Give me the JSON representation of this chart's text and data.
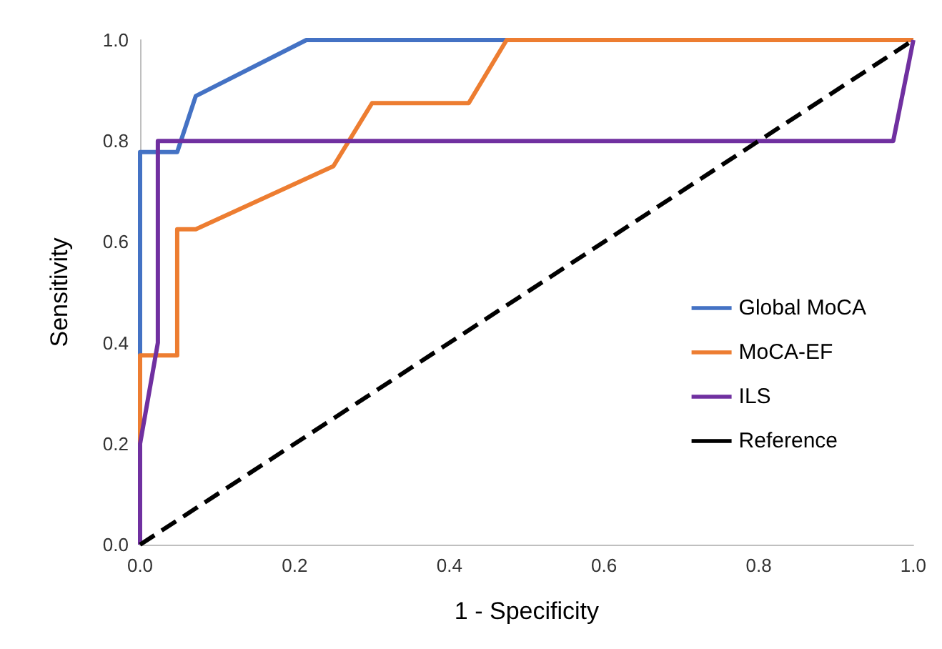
{
  "chart_data": {
    "type": "line",
    "xlabel": "1 - Specificity",
    "ylabel": "Sensitivity",
    "xlim": [
      0,
      1
    ],
    "ylim": [
      0,
      1
    ],
    "xticks": [
      {
        "value": 0,
        "label": "0.0"
      },
      0.2,
      0.4,
      0.6,
      0.8,
      {
        "value": 1,
        "label": "1.0"
      }
    ],
    "yticks": [
      {
        "value": 0,
        "label": "0.0"
      },
      0.2,
      0.4,
      0.6,
      0.8,
      {
        "value": 1,
        "label": "1.0"
      }
    ],
    "grid": false,
    "legend": "right",
    "series": [
      {
        "name": "Global MoCA",
        "color": "#4472c4",
        "x": [
          0,
          0,
          0.048,
          0.072,
          0.215,
          1
        ],
        "values": [
          0,
          0.778,
          0.778,
          0.889,
          1,
          1
        ]
      },
      {
        "name": "MoCA-EF",
        "color": "#ed7d31",
        "x": [
          0,
          0,
          0.048,
          0.048,
          0.072,
          0.25,
          0.3,
          0.425,
          0.474,
          1
        ],
        "values": [
          0,
          0.375,
          0.375,
          0.625,
          0.625,
          0.75,
          0.875,
          0.875,
          1,
          1
        ]
      },
      {
        "name": "ILS",
        "color": "#7030a0",
        "x": [
          0,
          0,
          0.023,
          0.023,
          0.974,
          1
        ],
        "values": [
          0,
          0.2,
          0.4,
          0.8,
          0.8,
          1
        ]
      },
      {
        "name": "Reference",
        "color": "#000000",
        "line_style": "dashed",
        "x": [
          0,
          1
        ],
        "values": [
          0,
          1
        ]
      }
    ]
  }
}
